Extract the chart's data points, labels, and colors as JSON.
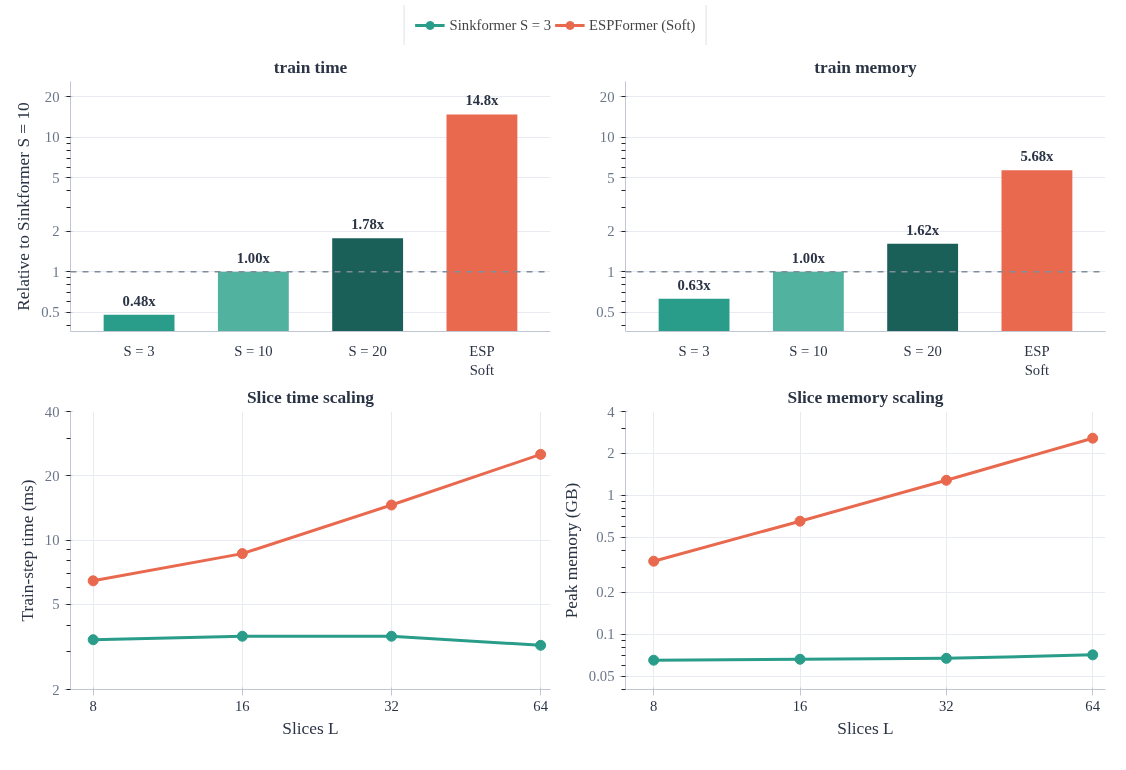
{
  "chart_data": [
    {
      "type": "bar",
      "title": "train time",
      "ylabel": "Relative to Sinkformer S = 10",
      "categories": [
        "S = 3",
        "S = 10",
        "S = 20",
        "ESP\nSoft"
      ],
      "values": [
        0.48,
        1.0,
        1.78,
        14.8
      ],
      "colors": [
        "#2a9d8a",
        "#52b2a0",
        "#1a5f58",
        "#e9694f"
      ],
      "value_labels": [
        "0.48x",
        "1.00x",
        "1.78x",
        "14.8x"
      ],
      "log": "y",
      "ylim": [
        0.36,
        26
      ],
      "yticks": [
        0.5,
        1,
        2,
        5,
        10,
        20
      ],
      "grid": "y",
      "ref_lines": [
        {
          "axis": "y",
          "value": 1,
          "color": "#7f8c9c",
          "line_style": "dashed"
        }
      ]
    },
    {
      "type": "bar",
      "title": "train memory",
      "categories": [
        "S = 3",
        "S = 10",
        "S = 20",
        "ESP\nSoft"
      ],
      "values": [
        0.63,
        1.0,
        1.62,
        5.68
      ],
      "colors": [
        "#2a9d8a",
        "#52b2a0",
        "#1a5f58",
        "#e9694f"
      ],
      "value_labels": [
        "0.63x",
        "1.00x",
        "1.62x",
        "5.68x"
      ],
      "log": "y",
      "ylim": [
        0.36,
        26
      ],
      "yticks": [
        0.5,
        1,
        2,
        5,
        10,
        20
      ],
      "grid": "y",
      "ref_lines": [
        {
          "axis": "y",
          "value": 1,
          "color": "#7f8c9c",
          "line_style": "dashed"
        }
      ]
    },
    {
      "type": "line",
      "title": "Slice time scaling",
      "xlabel": "Slices L",
      "ylabel": "Train-step time (ms)",
      "x": [
        8,
        16,
        32,
        64
      ],
      "log": "xy",
      "xlim": [
        7.2,
        67
      ],
      "xticks": [
        8,
        16,
        32,
        64
      ],
      "ylim": [
        2,
        40
      ],
      "yticks": [
        2,
        5,
        10,
        20,
        40
      ],
      "grid": true,
      "marker": "circle",
      "line_style": "solid",
      "legend": "top",
      "series": [
        {
          "name": "Sinkformer S = 3",
          "color": "#2a9d8a",
          "values": [
            3.42,
            3.55,
            3.55,
            3.22
          ]
        },
        {
          "name": "ESPFormer (Soft)",
          "color": "#e9694f",
          "values": [
            6.45,
            8.65,
            14.6,
            25.2
          ]
        }
      ]
    },
    {
      "type": "line",
      "title": "Slice memory scaling",
      "xlabel": "Slices L",
      "ylabel": "Peak memory (GB)",
      "x": [
        8,
        16,
        32,
        64
      ],
      "log": "xy",
      "xlim": [
        7.0,
        68
      ],
      "xticks": [
        8,
        16,
        32,
        64
      ],
      "ylim": [
        0.04,
        4
      ],
      "yticks": [
        0.05,
        0.1,
        0.2,
        0.5,
        1,
        2,
        4
      ],
      "grid": true,
      "marker": "circle",
      "line_style": "solid",
      "series": [
        {
          "color": "#2a9d8a",
          "values": [
            0.065,
            0.066,
            0.067,
            0.071
          ]
        },
        {
          "color": "#e9694f",
          "values": [
            0.335,
            0.65,
            1.28,
            2.57
          ]
        }
      ]
    }
  ]
}
